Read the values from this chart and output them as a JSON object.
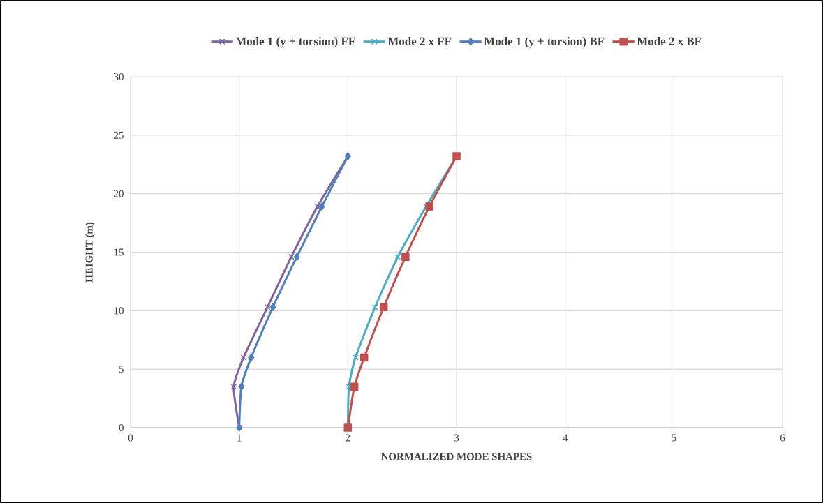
{
  "chart_data": {
    "type": "line",
    "xlabel": "NORMALIZED MODE SHAPES",
    "ylabel": "HEIGHT (m)",
    "xlim": [
      0,
      6
    ],
    "xticks": [
      0,
      1,
      2,
      3,
      4,
      5,
      6
    ],
    "ylim": [
      0,
      30
    ],
    "yticks": [
      0,
      5,
      10,
      15,
      20,
      25,
      30
    ],
    "grid": true,
    "legend": "top",
    "line_style": "solid",
    "series": [
      {
        "name": "Mode 1 (y + torsion) FF",
        "color": "#8064a2",
        "marker": "cross",
        "x": [
          1.0,
          0.95,
          1.04,
          1.26,
          1.48,
          1.72,
          2.0
        ],
        "values": [
          0,
          3.5,
          6,
          10.3,
          14.6,
          18.9,
          23.2
        ]
      },
      {
        "name": "Mode 2 x FF",
        "color": "#4bacc6",
        "marker": "cross",
        "x": [
          2.0,
          2.01,
          2.07,
          2.25,
          2.46,
          2.72,
          3.0
        ],
        "values": [
          0,
          3.5,
          6,
          10.3,
          14.6,
          18.9,
          23.2
        ]
      },
      {
        "name": "Mode 1 (y + torsion) BF",
        "color": "#4f81bd",
        "marker": "diamond",
        "x": [
          1.0,
          1.02,
          1.11,
          1.31,
          1.53,
          1.76,
          2.0
        ],
        "values": [
          0,
          3.5,
          6,
          10.3,
          14.6,
          18.9,
          23.2
        ]
      },
      {
        "name": "Mode 2 x BF",
        "color": "#c0504d",
        "marker": "square",
        "x": [
          2.0,
          2.06,
          2.15,
          2.33,
          2.53,
          2.75,
          3.0
        ],
        "values": [
          0,
          3.5,
          6,
          10.3,
          14.6,
          18.9,
          23.2
        ]
      }
    ]
  }
}
